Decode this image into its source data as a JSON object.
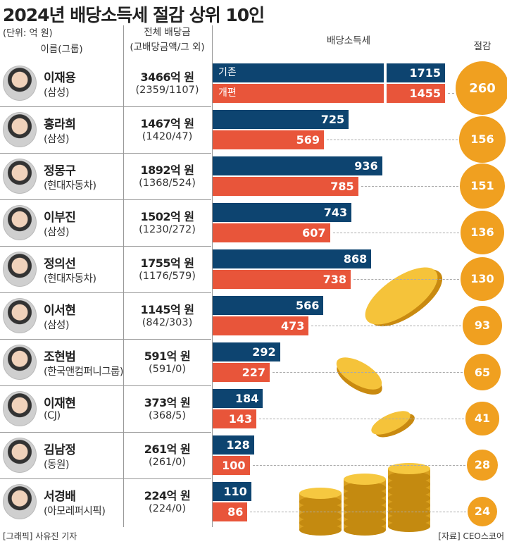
{
  "chart_data": {
    "type": "bar",
    "title": "2024년 배당소득세 절감 상위 10인",
    "unit": "(단위: 억 원)",
    "headers": {
      "name": "이름(그룹)",
      "total_line1": "전체 배당금",
      "total_line2": "(고배당금액/그 외)",
      "tax": "배당소득세",
      "saving": "절감"
    },
    "legend": {
      "before": "기존",
      "after": "개편"
    },
    "colors": {
      "before": "#0d4470",
      "after": "#e8553a",
      "saving": "#f0a020"
    },
    "rows": [
      {
        "name": "이재용",
        "group": "(삼성)",
        "total": "3466억 원",
        "split": "(2359/1107)",
        "before": 1715,
        "after": 1455,
        "saving": 260
      },
      {
        "name": "홍라희",
        "group": "(삼성)",
        "total": "1467억 원",
        "split": "(1420/47)",
        "before": 725,
        "after": 569,
        "saving": 156
      },
      {
        "name": "정몽구",
        "group": "(현대자동차)",
        "total": "1892억 원",
        "split": "(1368/524)",
        "before": 936,
        "after": 785,
        "saving": 151
      },
      {
        "name": "이부진",
        "group": "(삼성)",
        "total": "1502억 원",
        "split": "(1230/272)",
        "before": 743,
        "after": 607,
        "saving": 136
      },
      {
        "name": "정의선",
        "group": "(현대자동차)",
        "total": "1755억 원",
        "split": "(1176/579)",
        "before": 868,
        "after": 738,
        "saving": 130
      },
      {
        "name": "이서현",
        "group": "(삼성)",
        "total": "1145억 원",
        "split": "(842/303)",
        "before": 566,
        "after": 473,
        "saving": 93
      },
      {
        "name": "조현범",
        "group": "(한국앤컴퍼니그룹)",
        "total": "591억 원",
        "split": "(591/0)",
        "before": 292,
        "after": 227,
        "saving": 65
      },
      {
        "name": "이재현",
        "group": "(CJ)",
        "total": "373억 원",
        "split": "(368/5)",
        "before": 184,
        "after": 143,
        "saving": 41
      },
      {
        "name": "김남정",
        "group": "(동원)",
        "total": "261억 원",
        "split": "(261/0)",
        "before": 128,
        "after": 100,
        "saving": 28
      },
      {
        "name": "서경배",
        "group": "(아모레퍼시픽)",
        "total": "224억 원",
        "split": "(224/0)",
        "before": 110,
        "after": 86,
        "saving": 24
      }
    ]
  },
  "footer": {
    "credit": "[그래픽] 사유진 기자",
    "source": "[자료] CEO스코어"
  }
}
